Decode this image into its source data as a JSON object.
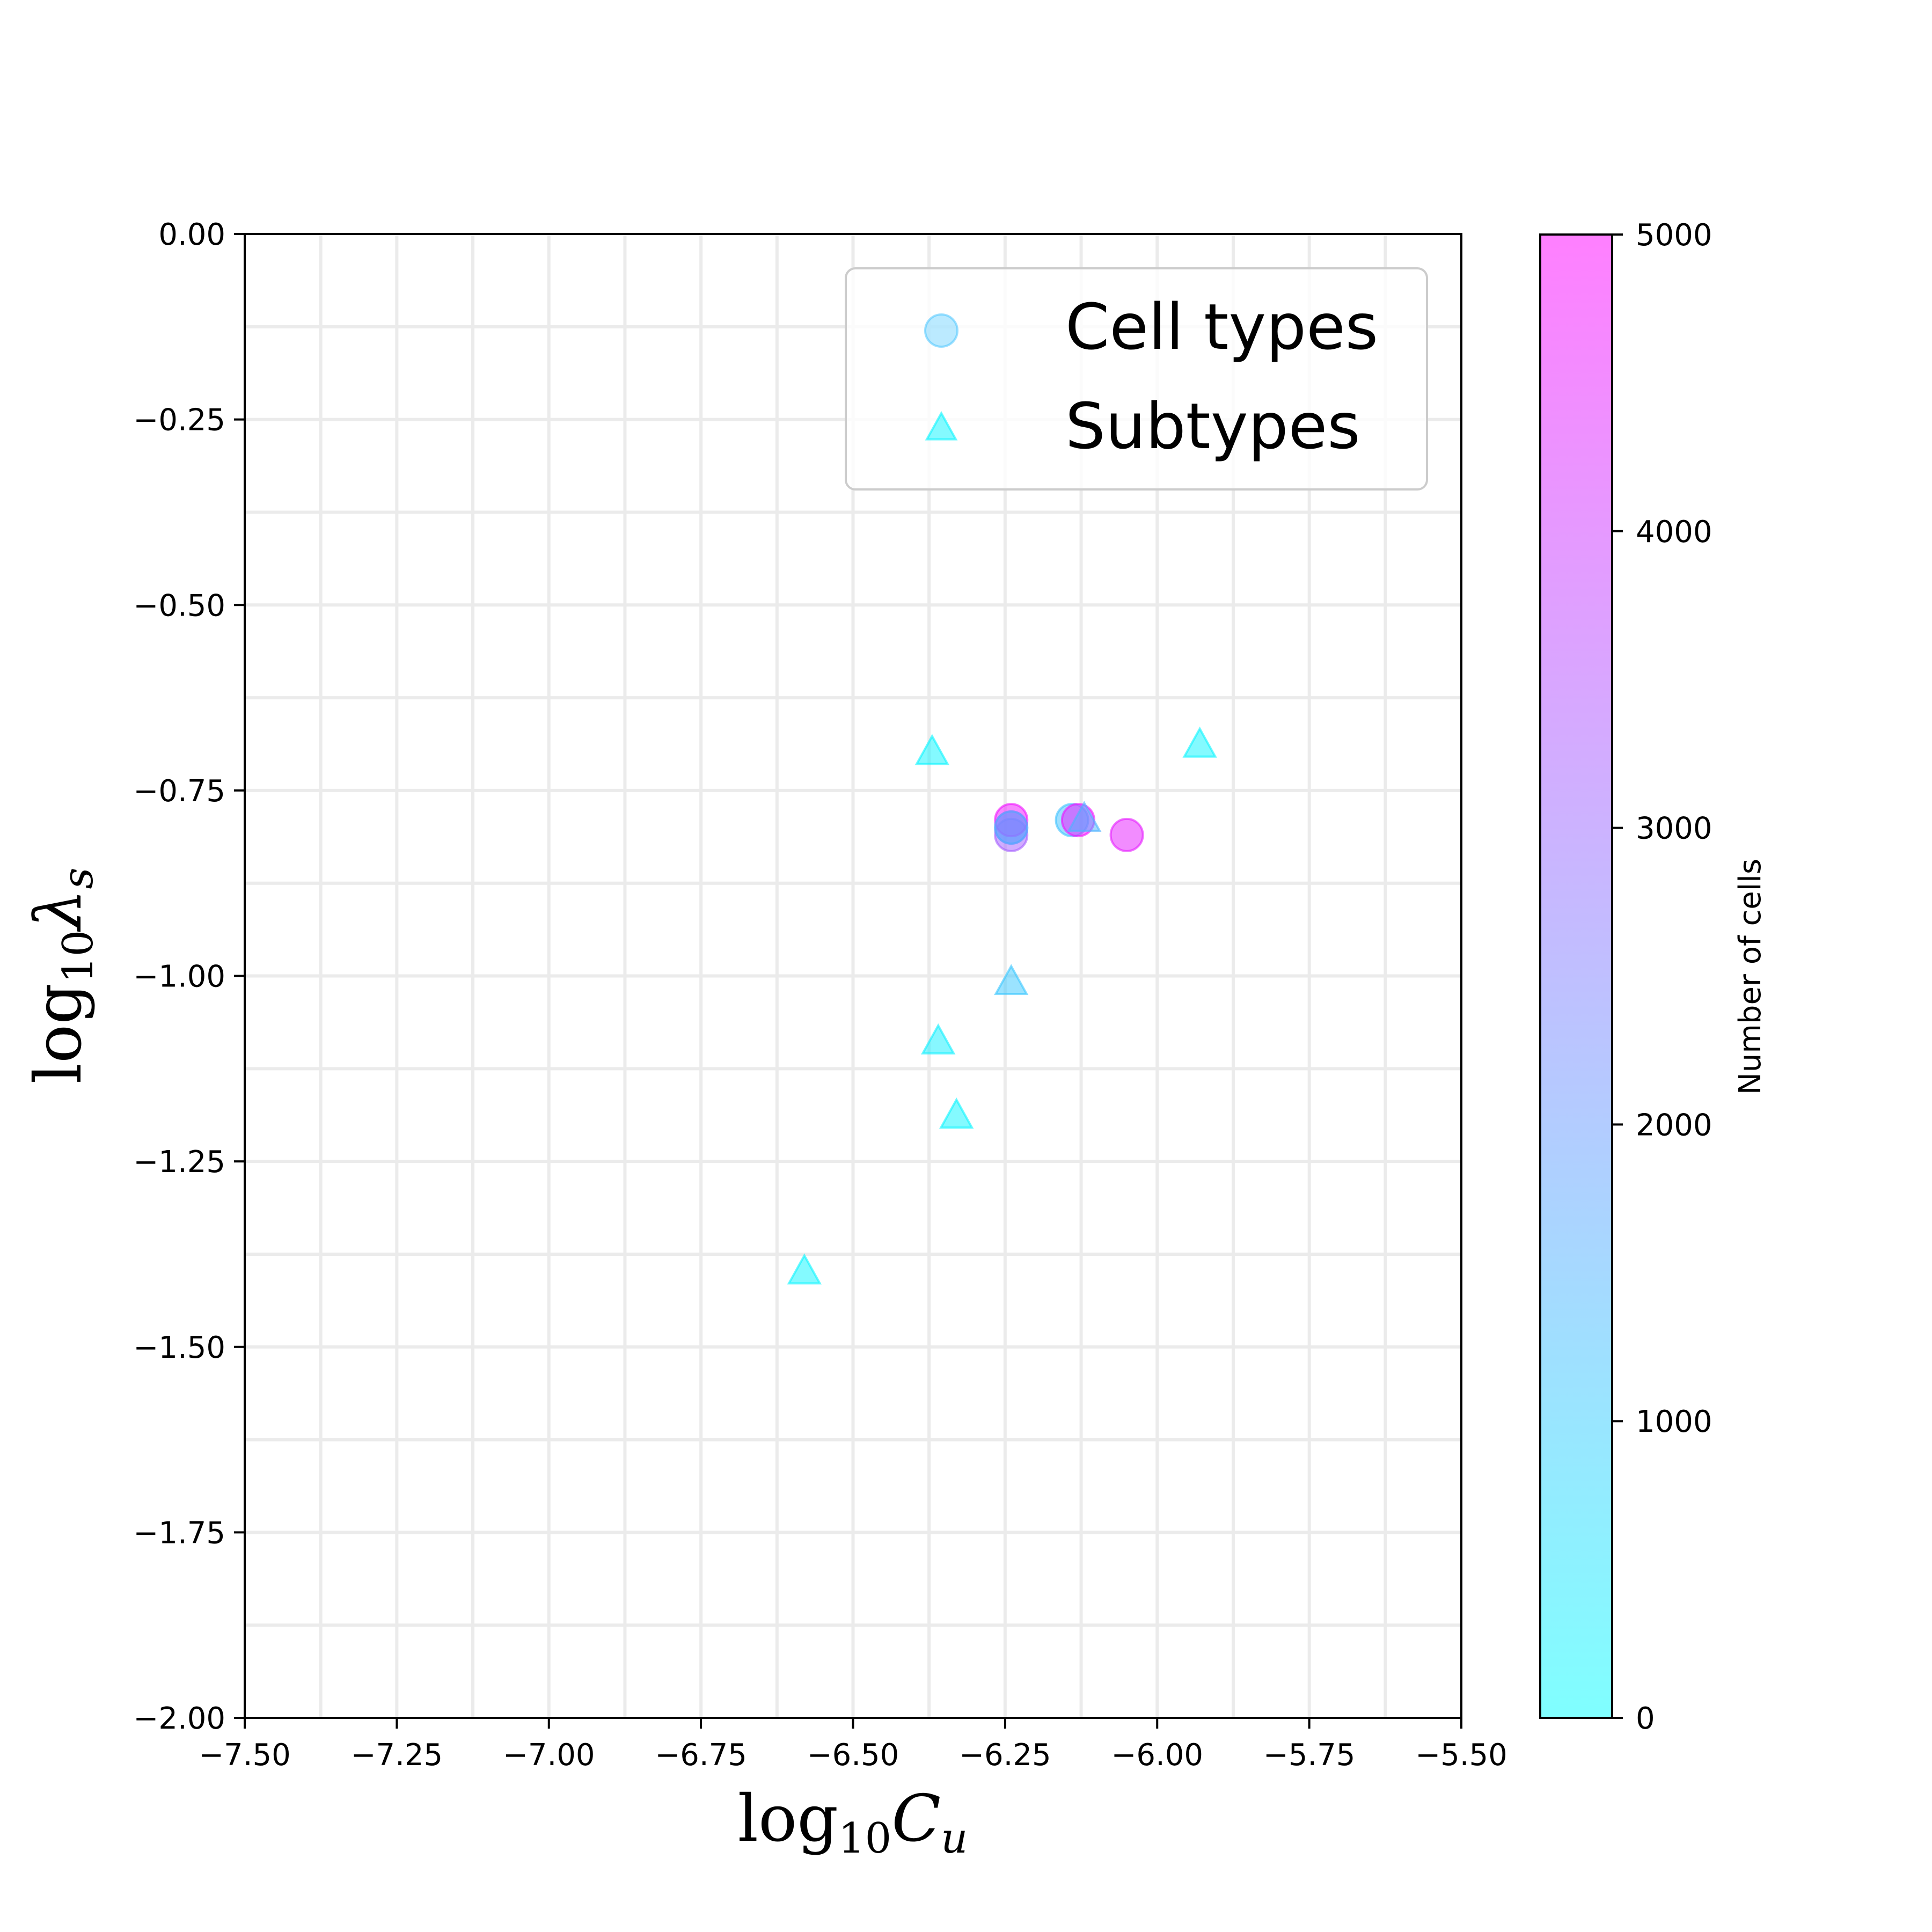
{
  "chart_data": {
    "type": "scatter",
    "title": "",
    "xlabel": {
      "base": "log",
      "sub": "10",
      "var": "C",
      "var_sub": "u"
    },
    "ylabel": {
      "base": "log",
      "sub": "10",
      "var": "λ",
      "var_sub": "s"
    },
    "xlim": [
      -7.5,
      -5.5
    ],
    "ylim": [
      -2.0,
      0.0
    ],
    "x_ticks": [
      -7.5,
      -7.25,
      -7.0,
      -6.75,
      -6.5,
      -6.25,
      -6.0,
      -5.75,
      -5.5
    ],
    "x_tick_labels": [
      "−7.50",
      "−7.25",
      "−7.00",
      "−6.75",
      "−6.50",
      "−6.25",
      "−6.00",
      "−5.75",
      "−5.50"
    ],
    "y_ticks": [
      0.0,
      -0.25,
      -0.5,
      -0.75,
      -1.0,
      -1.25,
      -1.5,
      -1.75,
      -2.0
    ],
    "y_tick_labels": [
      "0.00",
      "−0.25",
      "−0.50",
      "−0.75",
      "−1.00",
      "−1.25",
      "−1.50",
      "−1.75",
      "−2.00"
    ],
    "grid": true,
    "colormap": {
      "name": "cool",
      "low": "#00ffff",
      "high": "#ff00ff",
      "alpha": 0.5
    },
    "colorbar": {
      "label": "Number of cells",
      "range": [
        0,
        5000
      ],
      "ticks": [
        0,
        1000,
        2000,
        3000,
        4000,
        5000
      ],
      "tick_labels": [
        "0",
        "1000",
        "2000",
        "3000",
        "4000",
        "5000"
      ]
    },
    "legend": {
      "placement": "top-right",
      "entries": [
        {
          "label": "Cell types",
          "marker": "circle"
        },
        {
          "label": "Subtypes",
          "marker": "triangle"
        }
      ]
    },
    "series": [
      {
        "name": "Cell types",
        "marker": "circle",
        "points": [
          {
            "x": -6.24,
            "y": -0.8,
            "cells": 2300
          },
          {
            "x": -6.24,
            "y": -0.79,
            "cells": 4700
          },
          {
            "x": -6.24,
            "y": -0.81,
            "cells": 3200
          },
          {
            "x": -6.24,
            "y": -0.8,
            "cells": 1500
          },
          {
            "x": -6.14,
            "y": -0.79,
            "cells": 1200
          },
          {
            "x": -6.13,
            "y": -0.79,
            "cells": 4700
          },
          {
            "x": -6.05,
            "y": -0.81,
            "cells": 4500
          }
        ]
      },
      {
        "name": "Subtypes",
        "marker": "triangle",
        "points": [
          {
            "x": -6.37,
            "y": -0.7,
            "cells": 200
          },
          {
            "x": -5.93,
            "y": -0.69,
            "cells": 200
          },
          {
            "x": -6.12,
            "y": -0.79,
            "cells": 1500
          },
          {
            "x": -6.24,
            "y": -1.01,
            "cells": 1100
          },
          {
            "x": -6.36,
            "y": -1.09,
            "cells": 300
          },
          {
            "x": -6.33,
            "y": -1.19,
            "cells": 200
          },
          {
            "x": -6.58,
            "y": -1.4,
            "cells": 200
          }
        ]
      }
    ]
  }
}
